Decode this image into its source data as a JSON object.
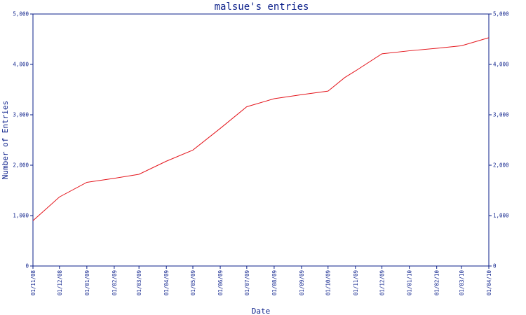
{
  "chart_data": {
    "type": "line",
    "title": "malsue's entries",
    "xlabel": "Date",
    "ylabel": "Number of Entries",
    "ylim": [
      0,
      5000
    ],
    "yticks": [
      0,
      1000,
      2000,
      3000,
      4000,
      5000
    ],
    "ytick_labels": [
      "0",
      "1,000",
      "2,000",
      "3,000",
      "4,000",
      "5,000"
    ],
    "xlim": [
      "2008-11-01",
      "2010-04-01"
    ],
    "xtick_labels": [
      "01/11/08",
      "01/12/08",
      "01/01/09",
      "01/02/09",
      "01/03/09",
      "01/04/09",
      "01/05/09",
      "01/06/09",
      "01/07/09",
      "01/08/09",
      "01/09/09",
      "01/10/09",
      "01/11/09",
      "01/12/09",
      "01/01/10",
      "01/02/10",
      "01/03/10",
      "01/04/10"
    ],
    "grid": false,
    "right_axis": true,
    "series": [
      {
        "color": "#e4141b",
        "points": [
          {
            "x": "2008-11-01",
            "y": 900
          },
          {
            "x": "2008-12-01",
            "y": 1370
          },
          {
            "x": "2009-01-01",
            "y": 1660
          },
          {
            "x": "2009-02-01",
            "y": 1740
          },
          {
            "x": "2009-03-01",
            "y": 1820
          },
          {
            "x": "2009-04-01",
            "y": 2080
          },
          {
            "x": "2009-05-01",
            "y": 2300
          },
          {
            "x": "2009-06-01",
            "y": 2730
          },
          {
            "x": "2009-07-01",
            "y": 3160
          },
          {
            "x": "2009-08-01",
            "y": 3320
          },
          {
            "x": "2009-09-01",
            "y": 3400
          },
          {
            "x": "2009-10-01",
            "y": 3470
          },
          {
            "x": "2009-10-20",
            "y": 3740
          },
          {
            "x": "2009-11-01",
            "y": 3870
          },
          {
            "x": "2009-12-01",
            "y": 4210
          },
          {
            "x": "2010-01-01",
            "y": 4270
          },
          {
            "x": "2010-02-01",
            "y": 4320
          },
          {
            "x": "2010-03-01",
            "y": 4370
          },
          {
            "x": "2010-04-01",
            "y": 4530
          }
        ]
      }
    ]
  },
  "colors": {
    "axis": "#0b1f8a",
    "text": "#0b1f8a",
    "line": "#e4141b",
    "background": "#ffffff"
  }
}
